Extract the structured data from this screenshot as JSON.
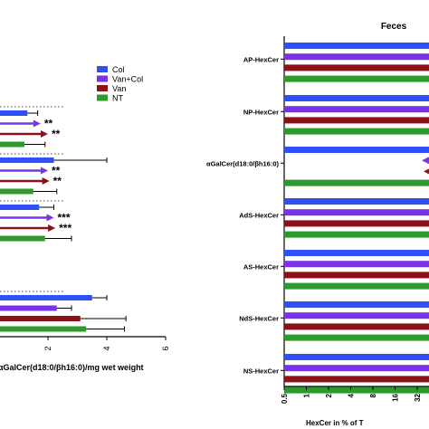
{
  "colors": {
    "Col": "#2f50f5",
    "Van+Col": "#7a32e8",
    "Van": "#8c1116",
    "NT": "#2e9a2e",
    "axis": "#000000",
    "dotted": "#444444"
  },
  "chart_data": [
    {
      "type": "bar",
      "orientation": "horizontal",
      "title": "",
      "xlabel": "αGalCer(d18:0/βh16:0)/mg wet weight",
      "ylabel": "",
      "xlim": [
        0,
        6
      ],
      "x_ticks": [
        "2",
        "4",
        "6"
      ],
      "legend": {
        "placement": "top-right",
        "entries": [
          {
            "name": "Col",
            "color_key": "Col"
          },
          {
            "name": "Van+Col",
            "color_key": "Van+Col"
          },
          {
            "name": "Van",
            "color_key": "Van"
          },
          {
            "name": "NT",
            "color_key": "NT"
          }
        ]
      },
      "groups": [
        {
          "bars": [
            {
              "series": "Col",
              "value": 1.3,
              "error": 0.35
            },
            {
              "series": "Van+Col",
              "value": 0,
              "arrow": true,
              "arrow_tip": 1.75,
              "annotation": "**"
            },
            {
              "series": "Van",
              "value": 0,
              "arrow": true,
              "arrow_tip": 2.0,
              "annotation": "**"
            },
            {
              "series": "NT",
              "value": 1.2,
              "error": 0.7
            }
          ]
        },
        {
          "bars": [
            {
              "series": "Col",
              "value": 2.2,
              "error": 1.8
            },
            {
              "series": "Van+Col",
              "value": 0,
              "arrow": true,
              "arrow_tip": 2.0,
              "annotation": "**"
            },
            {
              "series": "Van",
              "value": 0,
              "arrow": true,
              "arrow_tip": 2.05,
              "annotation": "**"
            },
            {
              "series": "NT",
              "value": 1.5,
              "error": 0.8
            }
          ]
        },
        {
          "bars": [
            {
              "series": "Col",
              "value": 1.7,
              "error": 0.5
            },
            {
              "series": "Van+Col",
              "value": 0,
              "arrow": true,
              "arrow_tip": 2.2,
              "annotation": "***"
            },
            {
              "series": "Van",
              "value": 0,
              "arrow": true,
              "arrow_tip": 2.25,
              "annotation": "***"
            },
            {
              "series": "NT",
              "value": 1.9,
              "error": 0.9
            }
          ]
        },
        {
          "bars": [
            {
              "series": "Col",
              "value": 3.5,
              "error": 0.5
            },
            {
              "series": "Van+Col",
              "value": 2.3,
              "error": 0.5
            },
            {
              "series": "Van",
              "value": 3.1,
              "error": 1.55
            },
            {
              "series": "NT",
              "value": 3.3,
              "error": 1.3
            }
          ]
        }
      ]
    },
    {
      "type": "bar",
      "orientation": "horizontal",
      "title": "Feces",
      "xlabel": "HexCer in % of T",
      "ylabel": "",
      "x_scale": "log2",
      "x_ticks": [
        "0.5",
        "1",
        "2",
        "4",
        "8",
        "16",
        "32"
      ],
      "categories": [
        "AP-HexCer",
        "NP-HexCer",
        "αGalCer(d18:0/βh16:0)",
        "AdS-HexCer",
        "AS-HexCer",
        "NdS-HexCer",
        "NS-HexCer"
      ],
      "category_highlight": {
        "αGalCer(d18:0/βh16:0)": "#2f50f5"
      },
      "series": [
        {
          "name": "Col",
          "color_key": "Col"
        },
        {
          "name": "Van+Col",
          "color_key": "Van+Col"
        },
        {
          "name": "Van",
          "color_key": "Van"
        },
        {
          "name": "NT",
          "color_key": "NT"
        }
      ],
      "bars_extend_beyond_view": true
    }
  ]
}
